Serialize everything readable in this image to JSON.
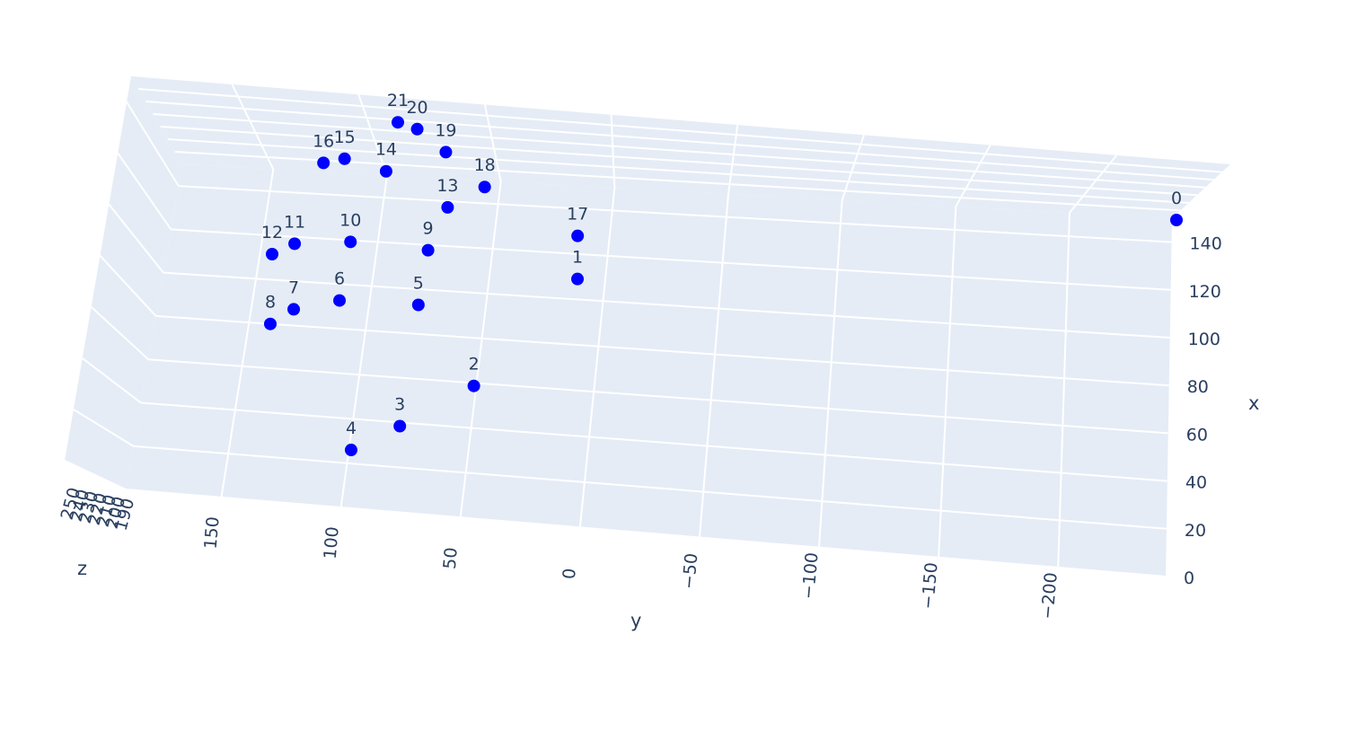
{
  "chart_data": {
    "type": "scatter3d",
    "title": "",
    "x_axis": {
      "title": "x",
      "ticks": [
        "0",
        "20",
        "40",
        "60",
        "80",
        "100",
        "120",
        "140"
      ],
      "range": [
        0,
        150
      ]
    },
    "y_axis": {
      "title": "y",
      "ticks": [
        "150",
        "100",
        "50",
        "0",
        "−50",
        "−100",
        "−150",
        "−200"
      ],
      "range": [
        -245,
        190
      ],
      "reversed": true
    },
    "z_axis": {
      "title": "z",
      "ticks": [
        "250",
        "240",
        "230",
        "220",
        "210",
        "200",
        "190"
      ],
      "range": [
        185,
        255
      ]
    },
    "grid": true,
    "marker_color": "#0000ff",
    "background_color": "#e5ecf6",
    "points": [
      {
        "label": "0",
        "x": 150,
        "y": -245,
        "z": 200
      },
      {
        "label": "1",
        "x": 110,
        "y": 15,
        "z": 205
      },
      {
        "label": "2",
        "x": 60,
        "y": 55,
        "z": 210
      },
      {
        "label": "3",
        "x": 40,
        "y": 85,
        "z": 215
      },
      {
        "label": "4",
        "x": 28,
        "y": 105,
        "z": 220
      },
      {
        "label": "5",
        "x": 95,
        "y": 85,
        "z": 220
      },
      {
        "label": "6",
        "x": 95,
        "y": 120,
        "z": 225
      },
      {
        "label": "7",
        "x": 90,
        "y": 140,
        "z": 230
      },
      {
        "label": "8",
        "x": 83,
        "y": 150,
        "z": 235
      },
      {
        "label": "9",
        "x": 120,
        "y": 85,
        "z": 225
      },
      {
        "label": "10",
        "x": 122,
        "y": 120,
        "z": 230
      },
      {
        "label": "11",
        "x": 120,
        "y": 145,
        "z": 235
      },
      {
        "label": "12",
        "x": 115,
        "y": 155,
        "z": 240
      },
      {
        "label": "13",
        "x": 140,
        "y": 80,
        "z": 230
      },
      {
        "label": "14",
        "x": 155,
        "y": 110,
        "z": 235
      },
      {
        "label": "15",
        "x": 160,
        "y": 130,
        "z": 240
      },
      {
        "label": "16",
        "x": 158,
        "y": 140,
        "z": 245
      },
      {
        "label": "17",
        "x": 130,
        "y": 20,
        "z": 220
      },
      {
        "label": "18",
        "x": 150,
        "y": 65,
        "z": 230
      },
      {
        "label": "19",
        "x": 165,
        "y": 85,
        "z": 235
      },
      {
        "label": "20",
        "x": 175,
        "y": 100,
        "z": 240
      },
      {
        "label": "21",
        "x": 178,
        "y": 110,
        "z": 245
      }
    ]
  }
}
